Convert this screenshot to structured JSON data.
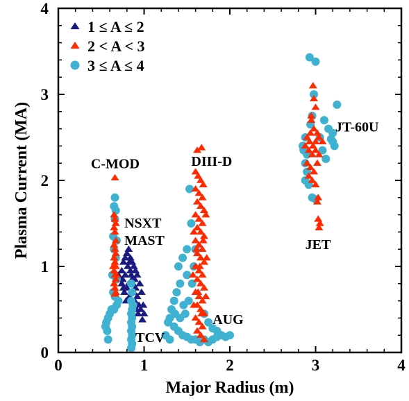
{
  "chart_data": {
    "type": "scatter",
    "xlabel": "Major Radius (m)",
    "ylabel": "Plasma Current (MA)",
    "xlim": [
      0,
      4
    ],
    "ylim": [
      0,
      4
    ],
    "xticks": [
      "0",
      "1",
      "2",
      "3",
      "4"
    ],
    "yticks": [
      "0",
      "1",
      "2",
      "3",
      "4"
    ],
    "grid": false,
    "legend_position": "top-left",
    "colors": {
      "low_A": "#1a1a80",
      "mid_A": "#ff2a00",
      "high_A": "#3fb2d2"
    },
    "series": [
      {
        "name": "1 ≤ A ≤ 2",
        "marker": "triangle",
        "color": "#1a1a80",
        "points": [
          [
            0.74,
            0.95
          ],
          [
            0.76,
            1.05
          ],
          [
            0.78,
            1.1
          ],
          [
            0.8,
            1.15
          ],
          [
            0.82,
            1.2
          ],
          [
            0.84,
            1.1
          ],
          [
            0.86,
            1.05
          ],
          [
            0.88,
            1.0
          ],
          [
            0.9,
            0.95
          ],
          [
            0.92,
            0.9
          ],
          [
            0.95,
            0.8
          ],
          [
            0.97,
            0.7
          ],
          [
            0.99,
            0.55
          ],
          [
            1.0,
            0.45
          ],
          [
            0.98,
            0.38
          ],
          [
            0.75,
            0.85
          ],
          [
            0.78,
            0.9
          ],
          [
            0.8,
            0.75
          ],
          [
            0.82,
            0.8
          ],
          [
            0.84,
            0.95
          ],
          [
            0.86,
            0.85
          ],
          [
            0.88,
            0.7
          ],
          [
            0.9,
            0.75
          ],
          [
            0.92,
            0.65
          ],
          [
            0.94,
            0.55
          ],
          [
            0.96,
            0.5
          ],
          [
            0.77,
            0.7
          ],
          [
            0.79,
            0.6
          ],
          [
            0.83,
            0.65
          ],
          [
            0.85,
            0.6
          ],
          [
            0.87,
            0.55
          ],
          [
            0.89,
            0.6
          ],
          [
            0.91,
            0.5
          ],
          [
            0.93,
            0.45
          ],
          [
            0.81,
            1.0
          ],
          [
            0.83,
            1.05
          ],
          [
            0.85,
            0.9
          ],
          [
            0.87,
            0.8
          ],
          [
            0.89,
            0.85
          ],
          [
            0.76,
            0.75
          ],
          [
            0.74,
            0.8
          ],
          [
            0.72,
            0.85
          ],
          [
            0.7,
            0.9
          ]
        ]
      },
      {
        "name": "2 < A < 3",
        "marker": "triangle",
        "color": "#ff2a00",
        "points": [
          [
            0.66,
            2.03
          ],
          [
            0.65,
            1.6
          ],
          [
            0.66,
            1.55
          ],
          [
            0.67,
            1.5
          ],
          [
            0.65,
            1.45
          ],
          [
            0.66,
            1.4
          ],
          [
            0.67,
            1.3
          ],
          [
            0.65,
            1.25
          ],
          [
            0.66,
            1.2
          ],
          [
            0.67,
            1.15
          ],
          [
            0.65,
            1.1
          ],
          [
            0.66,
            1.05
          ],
          [
            0.67,
            1.0
          ],
          [
            0.65,
            0.95
          ],
          [
            0.66,
            0.9
          ],
          [
            0.67,
            0.85
          ],
          [
            0.65,
            0.8
          ],
          [
            0.66,
            0.75
          ],
          [
            0.67,
            0.7
          ],
          [
            0.68,
            0.9
          ],
          [
            0.64,
            1.0
          ],
          [
            0.66,
            0.68
          ],
          [
            1.62,
            2.35
          ],
          [
            1.67,
            2.38
          ],
          [
            1.6,
            2.1
          ],
          [
            1.63,
            2.05
          ],
          [
            1.66,
            2.0
          ],
          [
            1.69,
            1.95
          ],
          [
            1.6,
            1.9
          ],
          [
            1.64,
            1.85
          ],
          [
            1.68,
            1.8
          ],
          [
            1.62,
            1.75
          ],
          [
            1.66,
            1.7
          ],
          [
            1.7,
            1.65
          ],
          [
            1.6,
            1.6
          ],
          [
            1.64,
            1.55
          ],
          [
            1.68,
            1.5
          ],
          [
            1.62,
            1.45
          ],
          [
            1.66,
            1.4
          ],
          [
            1.7,
            1.35
          ],
          [
            1.6,
            1.3
          ],
          [
            1.64,
            1.25
          ],
          [
            1.68,
            1.2
          ],
          [
            1.62,
            1.15
          ],
          [
            1.66,
            1.1
          ],
          [
            1.7,
            1.05
          ],
          [
            1.6,
            1.0
          ],
          [
            1.64,
            0.95
          ],
          [
            1.68,
            0.9
          ],
          [
            1.62,
            0.85
          ],
          [
            1.66,
            0.8
          ],
          [
            1.7,
            0.75
          ],
          [
            1.6,
            0.7
          ],
          [
            1.64,
            0.65
          ],
          [
            1.68,
            0.6
          ],
          [
            1.62,
            0.55
          ],
          [
            1.66,
            0.5
          ],
          [
            1.7,
            0.45
          ],
          [
            1.6,
            0.4
          ],
          [
            1.64,
            0.35
          ],
          [
            1.68,
            0.3
          ],
          [
            1.62,
            0.25
          ],
          [
            1.66,
            0.2
          ],
          [
            1.7,
            0.15
          ],
          [
            1.58,
            0.55
          ],
          [
            1.72,
            0.65
          ],
          [
            1.57,
            0.9
          ],
          [
            1.73,
            1.1
          ],
          [
            1.58,
            1.4
          ],
          [
            1.72,
            1.6
          ],
          [
            1.65,
            1.0
          ],
          [
            1.63,
            0.7
          ],
          [
            1.67,
            0.45
          ],
          [
            1.61,
            1.2
          ],
          [
            1.69,
            1.3
          ],
          [
            2.97,
            3.1
          ],
          [
            2.98,
            2.95
          ],
          [
            3.0,
            2.85
          ],
          [
            2.95,
            2.75
          ],
          [
            2.98,
            2.6
          ],
          [
            3.02,
            2.55
          ],
          [
            2.9,
            2.5
          ],
          [
            2.93,
            2.45
          ],
          [
            2.97,
            2.4
          ],
          [
            3.0,
            2.45
          ],
          [
            3.04,
            2.5
          ],
          [
            3.08,
            2.45
          ],
          [
            2.88,
            2.4
          ],
          [
            2.92,
            2.35
          ],
          [
            2.96,
            2.3
          ],
          [
            3.0,
            2.35
          ],
          [
            3.04,
            2.3
          ],
          [
            2.9,
            2.2
          ],
          [
            2.94,
            2.15
          ],
          [
            2.98,
            2.1
          ],
          [
            3.02,
            2.2
          ],
          [
            2.92,
            2.05
          ],
          [
            2.96,
            2.0
          ],
          [
            3.0,
            1.95
          ],
          [
            2.95,
            2.7
          ],
          [
            3.03,
            1.55
          ],
          [
            3.05,
            1.5
          ],
          [
            3.04,
            1.45
          ],
          [
            3.02,
            1.75
          ],
          [
            3.03,
            1.8
          ],
          [
            2.94,
            2.55
          ]
        ]
      },
      {
        "name": "3 ≤ A ≤ 4",
        "marker": "circle",
        "color": "#3fb2d2",
        "points": [
          [
            0.66,
            1.8
          ],
          [
            0.65,
            1.7
          ],
          [
            0.67,
            1.65
          ],
          [
            0.66,
            1.55
          ],
          [
            0.64,
            1.35
          ],
          [
            0.68,
            1.3
          ],
          [
            0.65,
            1.2
          ],
          [
            0.67,
            1.1
          ],
          [
            0.63,
            0.9
          ],
          [
            0.68,
            0.85
          ],
          [
            0.64,
            0.7
          ],
          [
            0.66,
            0.65
          ],
          [
            0.7,
            0.6
          ],
          [
            0.68,
            0.55
          ],
          [
            0.65,
            0.5
          ],
          [
            0.62,
            0.5
          ],
          [
            0.6,
            0.45
          ],
          [
            0.58,
            0.4
          ],
          [
            0.56,
            0.35
          ],
          [
            0.55,
            0.3
          ],
          [
            0.57,
            0.25
          ],
          [
            0.58,
            0.15
          ],
          [
            0.85,
            0.8
          ],
          [
            0.86,
            0.7
          ],
          [
            0.85,
            0.6
          ],
          [
            0.87,
            0.55
          ],
          [
            0.86,
            0.5
          ],
          [
            0.85,
            0.45
          ],
          [
            0.86,
            0.4
          ],
          [
            0.85,
            0.35
          ],
          [
            0.86,
            0.3
          ],
          [
            0.85,
            0.25
          ],
          [
            0.86,
            0.2
          ],
          [
            0.85,
            0.15
          ],
          [
            0.86,
            0.1
          ],
          [
            0.85,
            0.05
          ],
          [
            1.53,
            1.9
          ],
          [
            1.55,
            1.5
          ],
          [
            1.5,
            1.2
          ],
          [
            1.45,
            1.1
          ],
          [
            1.4,
            1.0
          ],
          [
            1.5,
            0.9
          ],
          [
            1.42,
            0.8
          ],
          [
            1.38,
            0.7
          ],
          [
            1.35,
            0.6
          ],
          [
            1.32,
            0.5
          ],
          [
            1.3,
            0.4
          ],
          [
            1.28,
            0.35
          ],
          [
            1.35,
            0.3
          ],
          [
            1.4,
            0.25
          ],
          [
            1.45,
            0.2
          ],
          [
            1.5,
            0.18
          ],
          [
            1.55,
            0.15
          ],
          [
            1.6,
            0.15
          ],
          [
            1.65,
            0.12
          ],
          [
            1.7,
            0.15
          ],
          [
            1.75,
            0.12
          ],
          [
            1.8,
            0.15
          ],
          [
            1.85,
            0.18
          ],
          [
            1.9,
            0.2
          ],
          [
            1.95,
            0.18
          ],
          [
            2.0,
            0.2
          ],
          [
            1.48,
            0.45
          ],
          [
            1.52,
            0.6
          ],
          [
            1.46,
            0.55
          ],
          [
            1.42,
            0.4
          ],
          [
            1.36,
            0.45
          ],
          [
            1.56,
            0.8
          ],
          [
            1.58,
            1.0
          ],
          [
            1.6,
            1.2
          ],
          [
            1.75,
            0.35
          ],
          [
            1.8,
            0.28
          ],
          [
            1.85,
            0.25
          ],
          [
            1.7,
            0.45
          ],
          [
            1.25,
            0.2
          ],
          [
            1.3,
            0.15
          ],
          [
            3.0,
            3.38
          ],
          [
            2.93,
            3.43
          ],
          [
            2.98,
            3.0
          ],
          [
            2.96,
            2.75
          ],
          [
            2.94,
            2.65
          ],
          [
            3.1,
            2.7
          ],
          [
            3.15,
            2.6
          ],
          [
            3.2,
            2.55
          ],
          [
            3.25,
            2.88
          ],
          [
            3.2,
            2.45
          ],
          [
            3.22,
            2.4
          ],
          [
            2.88,
            2.5
          ],
          [
            2.86,
            2.35
          ],
          [
            2.9,
            2.3
          ],
          [
            2.88,
            2.2
          ],
          [
            2.9,
            2.1
          ],
          [
            2.88,
            2.0
          ],
          [
            2.92,
            1.95
          ],
          [
            2.96,
            1.8
          ],
          [
            3.0,
            1.78
          ],
          [
            3.05,
            2.5
          ],
          [
            3.08,
            2.35
          ],
          [
            3.12,
            2.25
          ],
          [
            2.85,
            2.4
          ],
          [
            3.18,
            2.48
          ]
        ]
      }
    ],
    "annotations": [
      {
        "text": "C-MOD",
        "x": 0.38,
        "y": 2.14
      },
      {
        "text": "NSXT",
        "x": 0.77,
        "y": 1.45
      },
      {
        "text": "MAST",
        "x": 0.77,
        "y": 1.25
      },
      {
        "text": "TCV",
        "x": 0.9,
        "y": 0.12
      },
      {
        "text": "DIII-D",
        "x": 1.55,
        "y": 2.17
      },
      {
        "text": "AUG",
        "x": 1.8,
        "y": 0.33
      },
      {
        "text": "JT-60U",
        "x": 3.23,
        "y": 2.57
      },
      {
        "text": "JET",
        "x": 2.88,
        "y": 1.2
      }
    ]
  }
}
